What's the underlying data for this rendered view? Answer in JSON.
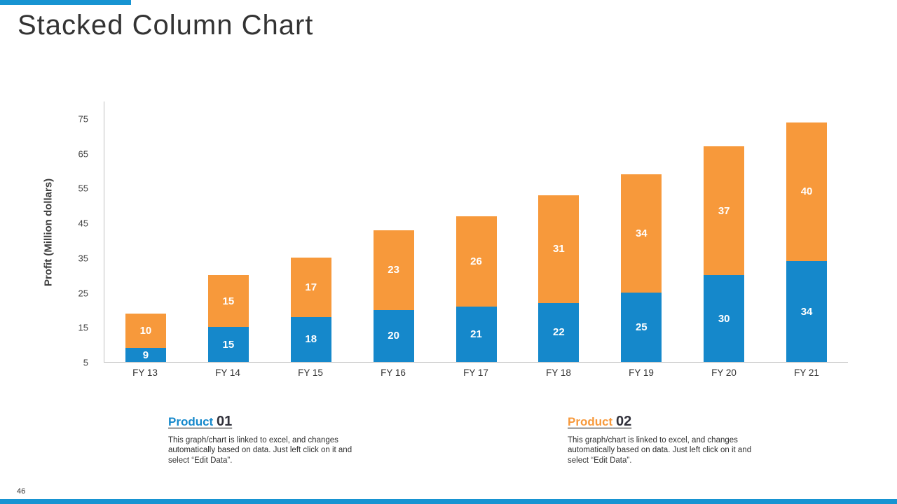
{
  "slide": {
    "title": "Stacked Column Chart",
    "page_number": "46",
    "accent_color": "#1794d2"
  },
  "chart_data": {
    "type": "bar",
    "stacked": true,
    "title": "Stacked Column Chart",
    "categories": [
      "FY 13",
      "FY 14",
      "FY 15",
      "FY 16",
      "FY 17",
      "FY 18",
      "FY 19",
      "FY 20",
      "FY 21"
    ],
    "series": [
      {
        "name": "Product 01",
        "color": "#1588cb",
        "values": [
          9,
          15,
          18,
          20,
          21,
          22,
          25,
          30,
          34
        ]
      },
      {
        "name": "Product 02",
        "color": "#f7993b",
        "values": [
          10,
          15,
          17,
          23,
          26,
          31,
          34,
          37,
          40
        ]
      }
    ],
    "xlabel": "",
    "ylabel": "Profit (Million dollars)",
    "yticks": [
      5,
      15,
      25,
      35,
      45,
      55,
      65,
      75
    ],
    "ylim": [
      5,
      80
    ],
    "baseline_value": 5,
    "grid": false,
    "legend_position": "below",
    "data_labels": "inside, white bold"
  },
  "legend": [
    {
      "name": "Product",
      "number": "01",
      "color": "#1588cb",
      "description": "This graph/chart is linked to excel, and changes automatically based on data. Just left click on it and select “Edit Data”."
    },
    {
      "name": "Product",
      "number": "02",
      "color": "#f7993b",
      "description": "This graph/chart is linked to excel, and changes automatically based on data. Just left click on it and select “Edit Data”."
    }
  ]
}
